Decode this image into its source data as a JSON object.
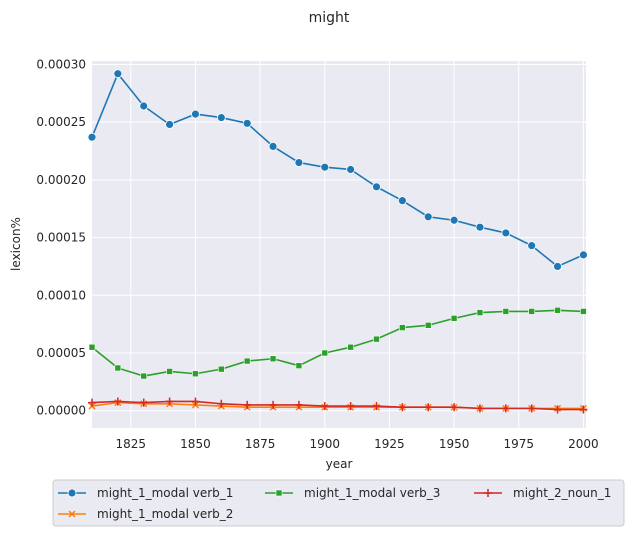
{
  "chart_data": {
    "type": "line",
    "title": "might",
    "xlabel": "year",
    "ylabel": "lexicon%",
    "xlim": [
      1810,
      2001
    ],
    "ylim": [
      -1.5e-05,
      0.000303
    ],
    "x_ticks": [
      1825,
      1850,
      1875,
      1900,
      1925,
      1950,
      1975,
      2000
    ],
    "y_ticks": [
      "0.00000",
      "0.00005",
      "0.00010",
      "0.00015",
      "0.00020",
      "0.00025",
      "0.00030"
    ],
    "y_tick_values": [
      0,
      5e-05,
      0.0001,
      0.00015,
      0.0002,
      0.00025,
      0.0003
    ],
    "grid": true,
    "legend_position": "bottom",
    "x": [
      1810,
      1820,
      1830,
      1840,
      1850,
      1860,
      1870,
      1880,
      1890,
      1900,
      1910,
      1920,
      1930,
      1940,
      1950,
      1960,
      1970,
      1980,
      1990,
      2000
    ],
    "series": [
      {
        "name": "might_1_modal verb_1",
        "color": "#1f77b4",
        "marker": "circle",
        "values": [
          0.000237,
          0.000292,
          0.000264,
          0.000248,
          0.000257,
          0.000254,
          0.000249,
          0.000229,
          0.000215,
          0.000211,
          0.000209,
          0.000194,
          0.000182,
          0.000168,
          0.000165,
          0.000159,
          0.000154,
          0.000143,
          0.000125,
          0.000135
        ]
      },
      {
        "name": "might_1_modal verb_2",
        "color": "#ff7f0e",
        "marker": "x",
        "values": [
          4e-06,
          7e-06,
          6e-06,
          6e-06,
          5e-06,
          4e-06,
          3e-06,
          3e-06,
          3e-06,
          3e-06,
          3e-06,
          3e-06,
          3e-06,
          3e-06,
          3e-06,
          2e-06,
          2e-06,
          2e-06,
          2e-06,
          2e-06
        ]
      },
      {
        "name": "might_1_modal verb_3",
        "color": "#2ca02c",
        "marker": "square",
        "values": [
          5.5e-05,
          3.7e-05,
          3e-05,
          3.4e-05,
          3.2e-05,
          3.6e-05,
          4.3e-05,
          4.5e-05,
          3.9e-05,
          5e-05,
          5.5e-05,
          6.2e-05,
          7.2e-05,
          7.4e-05,
          8e-05,
          8.5e-05,
          8.6e-05,
          8.6e-05,
          8.7e-05,
          8.6e-05
        ]
      },
      {
        "name": "might_2_noun_1",
        "color": "#d62728",
        "marker": "plus",
        "values": [
          7e-06,
          8e-06,
          7e-06,
          8e-06,
          8e-06,
          6e-06,
          5e-06,
          5e-06,
          5e-06,
          4e-06,
          4e-06,
          4e-06,
          3e-06,
          3e-06,
          3e-06,
          2e-06,
          2e-06,
          2e-06,
          1e-06,
          1e-06
        ]
      }
    ]
  }
}
